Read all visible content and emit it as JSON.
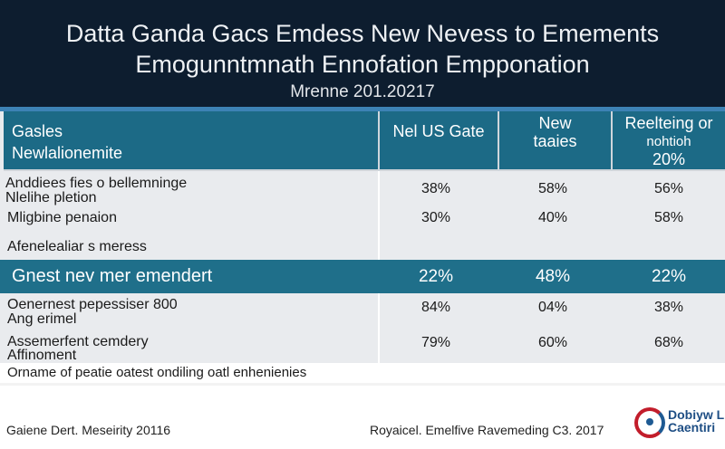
{
  "header": {
    "title_line1": "Datta Ganda Gacs Emdess New Nevess to Emements",
    "title_line2": "Emogunntmnath Ennofation Empponation",
    "date": "Mrenne 201.20217"
  },
  "table": {
    "head": {
      "col0_line1": "Gasles",
      "col0_line2": "Newlalionemite",
      "col1": "Nel US Gate",
      "col2_line1": "New",
      "col2_line2": "taaies",
      "col3_line1": "Reelteing or",
      "col3_line2": "nohtioh",
      "col3_line3": "20%"
    },
    "group1": {
      "label_line1": "Anddiees fies o bellemninge",
      "label_line2": "Nlelihe pletion",
      "rows": [
        {
          "label": "",
          "v1": "38%",
          "v2": "58%",
          "v3": "56%"
        },
        {
          "label": "Mligbine penaion",
          "v1": "30%",
          "v2": "40%",
          "v3": "58%"
        }
      ],
      "subhead": "Afenelealiar s meress"
    },
    "highlight": {
      "label": "Gnest nev mer emendert",
      "v1": "22%",
      "v2": "48%",
      "v3": "22%"
    },
    "group2": [
      {
        "label_line1": "Oenernest pepessiser  800",
        "label_line2": "Ang erimel",
        "v1": "84%",
        "v2": "04%",
        "v3": "38%"
      },
      {
        "label_line1": "Assemerfent cemdery",
        "label_line2": "Affinoment",
        "v1": "79%",
        "v2": "60%",
        "v3": "68%"
      }
    ]
  },
  "footnote": "Orname of peatie oatest ondiling oatl enhenienies",
  "footer": {
    "left": "Gaiene Dert. Meseirity 20116",
    "right": "Royaicel. Emelfive Ravemeding C3. 2017",
    "logo_line1": "Dobiyw L",
    "logo_line2": "Caentiri"
  },
  "colors": {
    "header_bg": "#0d1d2f",
    "table_head": "#1c6a86",
    "highlight": "#1f6f8a",
    "body_bg": "#e9ebee"
  }
}
